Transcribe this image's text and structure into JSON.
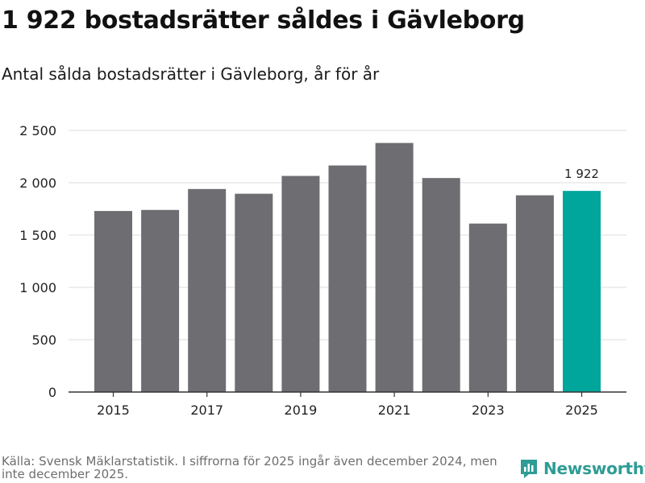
{
  "title": "1 922 bostadsrätter såldes i Gävleborg",
  "subtitle": "Antal sålda bostadsrätter i Gävleborg, år för år",
  "source": "Källa: Svensk Mäklarstatistik. I siffrorna för 2025 ingår även december 2024, men inte december 2025.",
  "logo_text": "Newsworthy",
  "colors": {
    "bar": "#6e6d72",
    "highlight": "#00a69c",
    "grid": "#dcdcdc",
    "axis": "#333333"
  },
  "chart_data": {
    "type": "bar",
    "title": "1 922 bostadsrätter såldes i Gävleborg",
    "xlabel": "",
    "ylabel": "",
    "categories": [
      "2015",
      "2016",
      "2017",
      "2018",
      "2019",
      "2020",
      "2021",
      "2022",
      "2023",
      "2024",
      "2025"
    ],
    "values": [
      1730,
      1740,
      1940,
      1895,
      2065,
      2165,
      2380,
      2045,
      1610,
      1880,
      1922
    ],
    "ylim": [
      0,
      2500
    ],
    "yticks": [
      0,
      500,
      1000,
      1500,
      2000,
      2500
    ],
    "ytick_labels": [
      "0",
      "500",
      "1 000",
      "1 500",
      "2 000",
      "2 500"
    ],
    "xtick_labels": [
      "2015",
      "2017",
      "2019",
      "2021",
      "2023",
      "2025"
    ],
    "highlight_category": "2025",
    "annotation": {
      "category": "2025",
      "text": "1 922"
    },
    "grid": true
  }
}
